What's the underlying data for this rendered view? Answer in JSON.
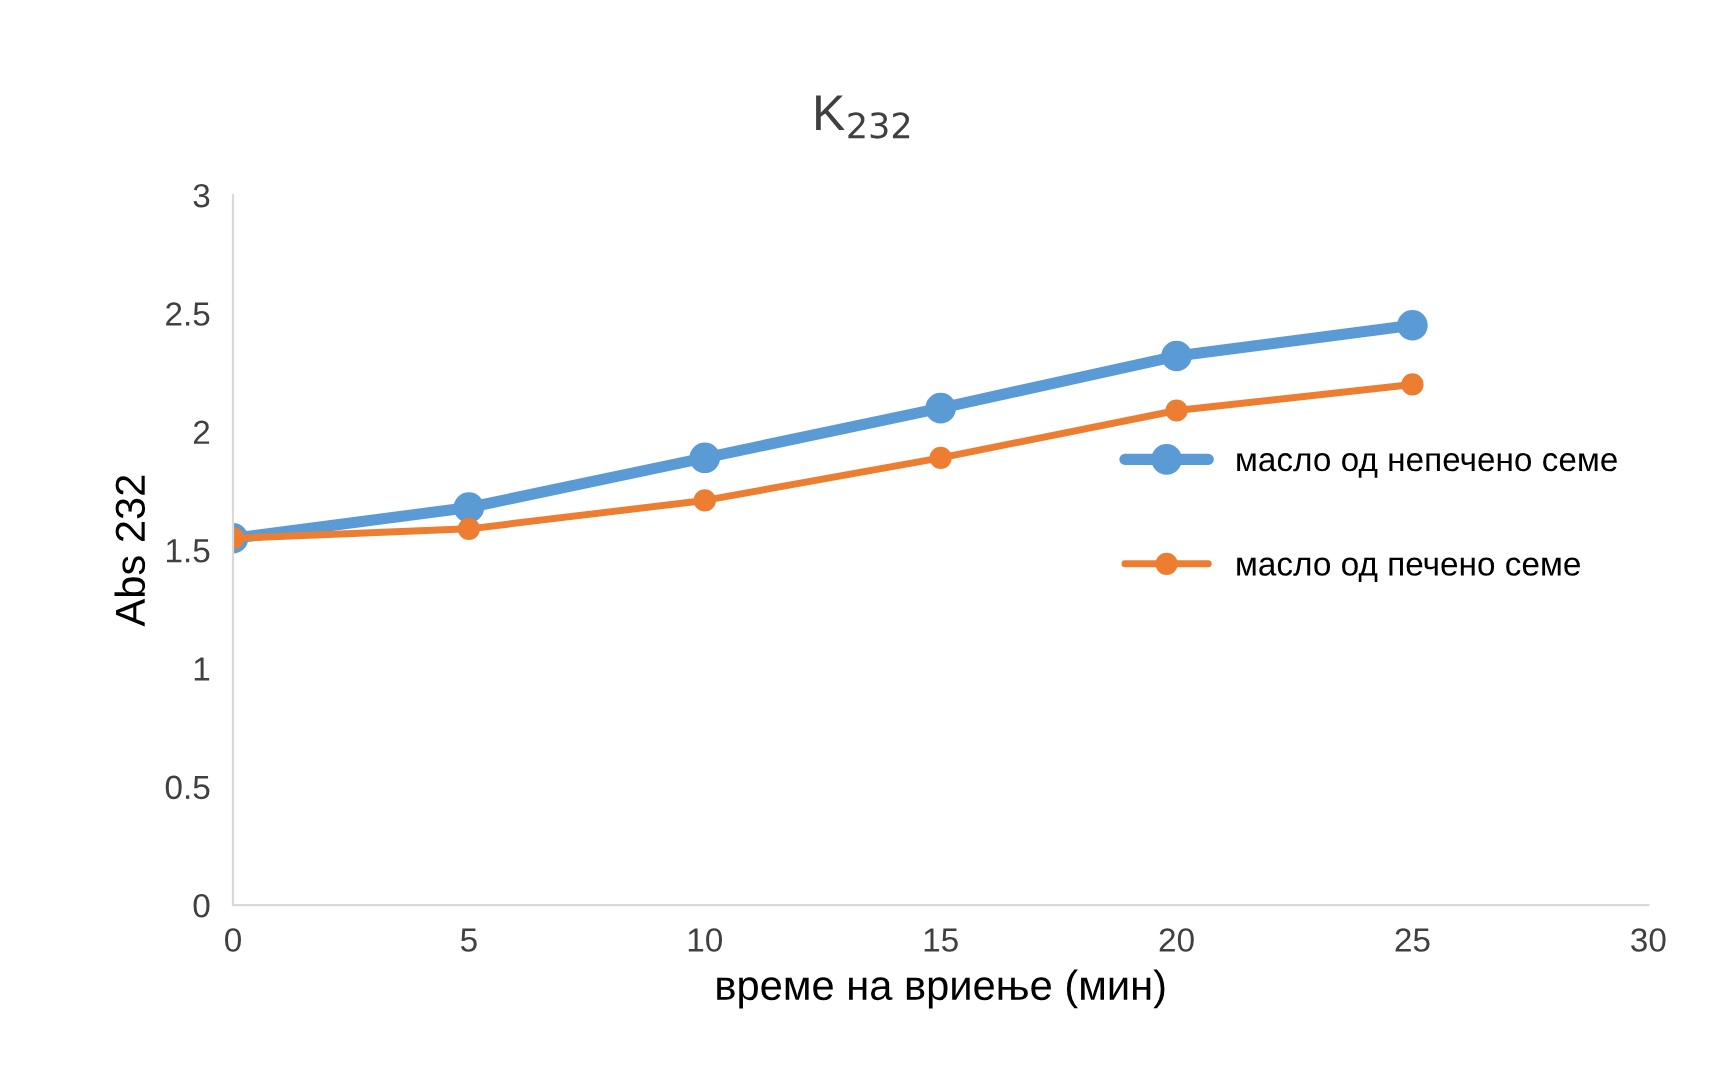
{
  "chart_data": {
    "type": "line",
    "title": "K$_{232}$",
    "xlabel": "време на вриење (мин)",
    "ylabel": "Abs 232",
    "x": [
      0,
      5,
      10,
      15,
      20,
      25
    ],
    "series": [
      {
        "name": "масло од непечено семе",
        "color": "#5b9bd5",
        "values": [
          1.55,
          1.68,
          1.89,
          2.1,
          2.32,
          2.45
        ]
      },
      {
        "name": "масло од печено семе",
        "color": "#ed7d31",
        "values": [
          1.55,
          1.59,
          1.71,
          1.89,
          2.09,
          2.2
        ]
      }
    ],
    "xlim": [
      0,
      30
    ],
    "xticks": [
      0,
      5,
      10,
      15,
      20,
      25,
      30
    ],
    "ylim": [
      0,
      3
    ],
    "yticks": [
      0,
      0.5,
      1,
      1.5,
      2,
      2.5,
      3
    ],
    "grid": false,
    "legend": "right",
    "marker": "circle",
    "line_style": "solid"
  }
}
